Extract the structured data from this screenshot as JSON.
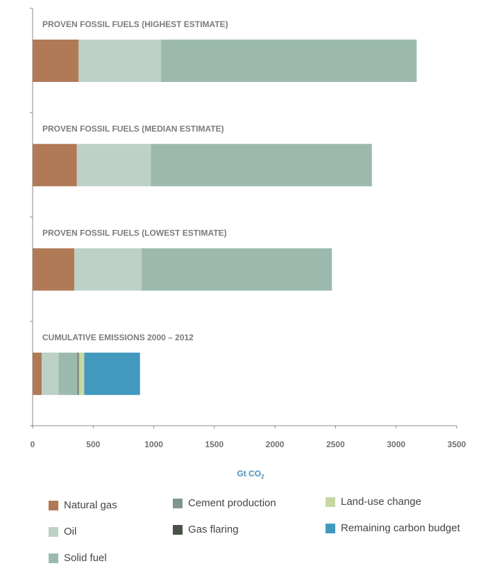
{
  "chart_data": {
    "type": "bar",
    "orientation": "horizontal",
    "stacked": true,
    "categories": [
      "PROVEN FOSSIL FUELS (HIGHEST ESTIMATE)",
      "PROVEN FOSSIL FUELS (MEDIAN ESTIMATE)",
      "PROVEN FOSSIL FUELS (LOWEST ESTIMATE)",
      "CUMULATIVE EMISSIONS 2000 – 2012"
    ],
    "series": [
      {
        "name": "Natural gas",
        "color": "#b07a57",
        "values": [
          380,
          365,
          345,
          75
        ]
      },
      {
        "name": "Oil",
        "color": "#bdd1c6",
        "values": [
          680,
          610,
          555,
          140
        ]
      },
      {
        "name": "Solid fuel",
        "color": "#9bbaad",
        "values": [
          2110,
          1825,
          1570,
          150
        ]
      },
      {
        "name": "Cement production",
        "color": "#7e968e",
        "values": [
          0,
          0,
          0,
          12
        ]
      },
      {
        "name": "Gas flaring",
        "color": "#4b5248",
        "values": [
          0,
          0,
          0,
          4
        ]
      },
      {
        "name": "Land-use change",
        "color": "#c6d8a3",
        "values": [
          0,
          0,
          0,
          45
        ]
      },
      {
        "name": "Remaining carbon budget",
        "color": "#4298bd",
        "values": [
          0,
          0,
          0,
          460
        ]
      }
    ],
    "xlabel": "Gt CO",
    "xlabel_sub": "2",
    "xlim": [
      0,
      3500
    ],
    "xticks": [
      "0",
      "500",
      "1000",
      "1500",
      "2000",
      "2500",
      "3000",
      "3500"
    ],
    "grid": false,
    "legend_position": "bottom"
  }
}
